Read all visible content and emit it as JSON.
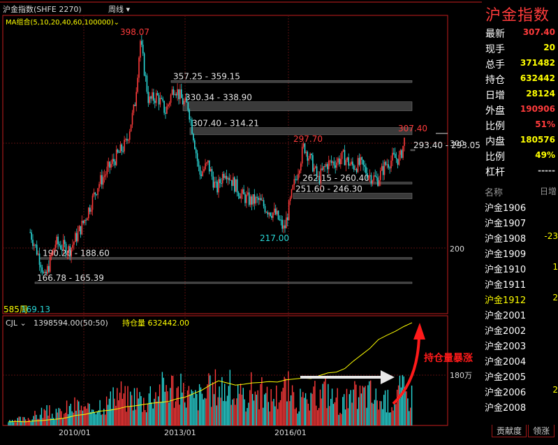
{
  "header": {
    "instrument": "沪金指数(SHFE 2270)",
    "period": "周线",
    "ma_label": "MA组合(5,10,20,40,60,100000)"
  },
  "colors": {
    "up": "#ff3b3b",
    "down": "#2ad8d8",
    "ma_volume": "#ffff00",
    "frame": "#c81e1e"
  },
  "chart_data": [
    {
      "type": "candlestick",
      "title": "沪金指数(SHFE 2270)",
      "x_ticks": [
        "2010/01",
        "2013/01",
        "2016/01"
      ],
      "y_ticks": [
        200.0,
        300.0
      ],
      "ylim": [
        150,
        420
      ],
      "grid": true,
      "series": [
        {
          "name": "close",
          "points": [
            [
              "2008/06",
              215
            ],
            [
              "2008/10",
              185
            ],
            [
              "2008/11",
              169
            ],
            [
              "2009/03",
              205
            ],
            [
              "2009/08",
              198
            ],
            [
              "2010/01",
              225
            ],
            [
              "2010/06",
              260
            ],
            [
              "2010/12",
              285
            ],
            [
              "2011/04",
              300
            ],
            [
              "2011/07",
              335
            ],
            [
              "2011/09",
              398.07
            ],
            [
              "2011/12",
              340
            ],
            [
              "2012/03",
              345
            ],
            [
              "2012/06",
              330
            ],
            [
              "2012/09",
              355
            ],
            [
              "2012/12",
              340
            ],
            [
              "2013/02",
              335
            ],
            [
              "2013/04",
              305
            ],
            [
              "2013/06",
              270
            ],
            [
              "2013/09",
              280
            ],
            [
              "2013/12",
              255
            ],
            [
              "2014/03",
              275
            ],
            [
              "2014/06",
              262
            ],
            [
              "2014/09",
              250
            ],
            [
              "2014/12",
              245
            ],
            [
              "2015/03",
              245
            ],
            [
              "2015/06",
              237
            ],
            [
              "2015/09",
              232
            ],
            [
              "2015/12",
              217.0
            ],
            [
              "2016/03",
              255
            ],
            [
              "2016/07",
              297.7
            ],
            [
              "2016/10",
              280
            ],
            [
              "2016/12",
              265
            ],
            [
              "2017/03",
              280
            ],
            [
              "2017/06",
              282
            ],
            [
              "2017/09",
              287
            ],
            [
              "2017/12",
              278
            ],
            [
              "2018/03",
              280
            ],
            [
              "2018/06",
              270
            ],
            [
              "2018/09",
              265
            ],
            [
              "2018/12",
              280
            ],
            [
              "2019/03",
              286
            ],
            [
              "2019/05",
              285
            ],
            [
              "2019/07",
              307.4
            ]
          ]
        }
      ],
      "annotations": [
        {
          "label": "398.07",
          "kind": "high"
        },
        {
          "label": "217.00",
          "kind": "low"
        },
        {
          "label": "297.70",
          "kind": "high"
        },
        {
          "label": "307.40",
          "kind": "high"
        },
        {
          "label": "585周",
          "kind": "count"
        },
        {
          "label": "169.13",
          "kind": "low"
        }
      ],
      "price_zones": [
        {
          "label": "357.25 - 359.15",
          "low": 357.25,
          "high": 359.15
        },
        {
          "label": "330.34 - 338.90",
          "low": 330.34,
          "high": 338.9
        },
        {
          "label": "307.40 - 314.21",
          "low": 307.4,
          "high": 314.21
        },
        {
          "label": "293.40 - 293.05",
          "low": 293.05,
          "high": 293.4
        },
        {
          "label": "262.15 - 260.40",
          "low": 260.4,
          "high": 262.15
        },
        {
          "label": "251.60 - 246.30",
          "low": 246.3,
          "high": 251.6
        },
        {
          "label": "190.20 - 188.60",
          "low": 188.6,
          "high": 190.2
        },
        {
          "label": "166.78 - 165.39",
          "low": 165.39,
          "high": 166.78
        }
      ]
    },
    {
      "type": "bar",
      "title": "CJL",
      "legend": [
        "CJL",
        "1398594.00(50:50)",
        "持仓量 632442.00"
      ],
      "y_ticks": [
        "180万"
      ],
      "ylim": [
        0,
        320
      ],
      "open_interest_values": [
        5,
        6,
        5,
        7,
        8,
        10,
        12,
        15,
        20,
        22,
        26,
        30,
        32,
        35,
        40,
        42,
        45,
        48,
        50,
        52,
        58,
        62,
        70,
        78,
        90,
        100,
        95,
        90,
        92,
        95,
        96,
        98,
        97,
        102,
        104,
        106,
        105,
        112,
        118,
        120,
        128,
        145,
        160,
        175,
        195,
        205,
        214,
        225,
        234
      ],
      "volume_values": [
        15,
        25,
        30,
        40,
        55,
        45,
        50,
        70,
        80,
        60,
        80,
        90,
        100,
        130,
        110,
        120,
        100,
        130,
        150,
        160,
        140,
        130,
        110,
        120,
        140,
        160,
        150,
        120,
        110,
        150,
        130,
        110,
        120,
        150,
        110,
        100,
        90,
        120,
        140,
        110,
        90,
        100,
        120,
        130,
        110,
        95,
        100,
        140,
        120
      ],
      "annotations": [
        {
          "label": "持仓量暴涨"
        }
      ]
    }
  ],
  "quote_panel": {
    "title": "沪金指数",
    "rows": [
      {
        "label": "最新",
        "value": "307.40",
        "color": "#ff3b3b"
      },
      {
        "label": "现手",
        "value": "20",
        "color": "#ffff00"
      },
      {
        "label": "总手",
        "value": "371482",
        "color": "#ffff00"
      },
      {
        "label": "持仓",
        "value": "632442",
        "color": "#ffff00"
      },
      {
        "label": "日增",
        "value": "28124",
        "color": "#ffff00"
      },
      {
        "label": "外盘",
        "value": "190906",
        "color": "#ff3b3b"
      },
      {
        "label": "比例",
        "value": "51%",
        "color": "#ff3b3b"
      },
      {
        "label": "内盘",
        "value": "180576",
        "color": "#ffff00"
      },
      {
        "label": "比例",
        "value": "49%",
        "color": "#ffff00"
      },
      {
        "label": "杠杆",
        "value": "-----",
        "color": "#cccccc"
      }
    ],
    "list_header": {
      "name": "名称",
      "change": "日增"
    },
    "list": [
      {
        "name": "沪金1906",
        "change": ""
      },
      {
        "name": "沪金1907",
        "change": ""
      },
      {
        "name": "沪金1908",
        "change": "-23"
      },
      {
        "name": "沪金1909",
        "change": ""
      },
      {
        "name": "沪金1910",
        "change": "1"
      },
      {
        "name": "沪金1911",
        "change": ""
      },
      {
        "name": "沪金1912",
        "change": "2"
      },
      {
        "name": "沪金2001",
        "change": ""
      },
      {
        "name": "沪金2002",
        "change": ""
      },
      {
        "name": "沪金2003",
        "change": ""
      },
      {
        "name": "沪金2004",
        "change": ""
      },
      {
        "name": "沪金2005",
        "change": ""
      },
      {
        "name": "沪金2006",
        "change": "2"
      },
      {
        "name": "沪金2008",
        "change": ""
      }
    ],
    "tabs": [
      "贡献度",
      "领涨"
    ]
  }
}
